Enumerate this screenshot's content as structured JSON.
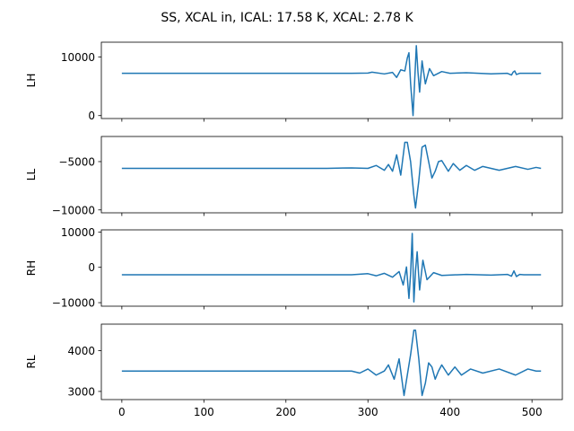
{
  "figure": {
    "suptitle": "SS, XCAL in, ICAL: 17.58 K, XCAL: 2.78 K",
    "line_color": "#1f77b4"
  },
  "chart_data": [
    {
      "type": "line",
      "ylabel": "LH",
      "xlim": [
        -25,
        537
      ],
      "ylim": [
        -500,
        12500
      ],
      "yticks": [
        0,
        10000
      ],
      "ytick_labels": [
        "0",
        "10000"
      ],
      "xticks": [
        0,
        100,
        200,
        300,
        400,
        500
      ],
      "xtick_labels": [
        "",
        "",
        "",
        "",
        "",
        ""
      ],
      "series": [
        {
          "x": [
            0,
            100,
            200,
            280,
            300,
            305,
            320,
            330,
            335,
            340,
            345,
            348,
            350,
            352,
            355,
            357,
            359,
            361,
            363,
            366,
            370,
            375,
            380,
            390,
            400,
            420,
            450,
            470,
            475,
            477,
            479,
            481,
            485,
            490,
            511
          ],
          "values": [
            7200,
            7200,
            7200,
            7200,
            7250,
            7400,
            7100,
            7350,
            6500,
            7800,
            7600,
            9800,
            10700,
            5500,
            0,
            6000,
            11900,
            7400,
            4000,
            9300,
            5400,
            8000,
            6800,
            7500,
            7200,
            7300,
            7100,
            7200,
            6900,
            7400,
            7600,
            7000,
            7200,
            7200,
            7200
          ]
        }
      ]
    },
    {
      "type": "line",
      "ylabel": "LL",
      "xlim": [
        -25,
        537
      ],
      "ylim": [
        -10300,
        -2400
      ],
      "yticks": [
        -10000,
        -5000
      ],
      "ytick_labels": [
        "−10000",
        "−5000"
      ],
      "xticks": [
        0,
        100,
        200,
        300,
        400,
        500
      ],
      "xtick_labels": [
        "",
        "",
        "",
        "",
        "",
        ""
      ],
      "series": [
        {
          "x": [
            0,
            50,
            100,
            150,
            200,
            250,
            280,
            300,
            310,
            320,
            325,
            330,
            335,
            340,
            345,
            348,
            352,
            356,
            358,
            362,
            366,
            370,
            374,
            378,
            382,
            386,
            390,
            398,
            404,
            412,
            420,
            430,
            440,
            460,
            480,
            495,
            505,
            511
          ],
          "values": [
            -5700,
            -5700,
            -5700,
            -5700,
            -5700,
            -5700,
            -5650,
            -5700,
            -5400,
            -5900,
            -5300,
            -6000,
            -4300,
            -6400,
            -3000,
            -3000,
            -5000,
            -8500,
            -9800,
            -7000,
            -3500,
            -3300,
            -5000,
            -6700,
            -6000,
            -5000,
            -4900,
            -6000,
            -5200,
            -5900,
            -5400,
            -5900,
            -5500,
            -5900,
            -5500,
            -5800,
            -5600,
            -5700
          ]
        }
      ]
    },
    {
      "type": "line",
      "ylabel": "RH",
      "xlim": [
        -25,
        537
      ],
      "ylim": [
        -11000,
        10600
      ],
      "yticks": [
        -10000,
        0,
        10000
      ],
      "ytick_labels": [
        "−10000",
        "0",
        "10000"
      ],
      "xticks": [
        0,
        100,
        200,
        300,
        400,
        500
      ],
      "xtick_labels": [
        "",
        "",
        "",
        "",
        "",
        ""
      ],
      "series": [
        {
          "x": [
            0,
            100,
            200,
            280,
            300,
            310,
            320,
            330,
            338,
            343,
            347,
            350,
            352,
            354,
            356,
            358,
            360,
            363,
            367,
            372,
            380,
            390,
            420,
            450,
            470,
            475,
            478,
            481,
            485,
            490,
            511
          ],
          "values": [
            -2100,
            -2100,
            -2100,
            -2100,
            -1800,
            -2400,
            -1700,
            -2800,
            -1200,
            -5000,
            100,
            -8800,
            -2000,
            9600,
            -9800,
            -1000,
            4400,
            -6400,
            2000,
            -3500,
            -1500,
            -2300,
            -2000,
            -2200,
            -2000,
            -2500,
            -1000,
            -2600,
            -2000,
            -2100,
            -2100
          ]
        }
      ]
    },
    {
      "type": "line",
      "ylabel": "RL",
      "xlim": [
        -25,
        537
      ],
      "ylim": [
        2800,
        4650
      ],
      "yticks": [
        3000,
        4000
      ],
      "ytick_labels": [
        "3000",
        "4000"
      ],
      "xticks": [
        0,
        100,
        200,
        300,
        400,
        500
      ],
      "xtick_labels": [
        "0",
        "100",
        "200",
        "300",
        "400",
        "500"
      ],
      "series": [
        {
          "x": [
            0,
            50,
            100,
            150,
            200,
            250,
            280,
            290,
            300,
            310,
            320,
            325,
            332,
            338,
            344,
            348,
            352,
            356,
            358,
            362,
            366,
            370,
            374,
            378,
            382,
            386,
            390,
            398,
            406,
            414,
            425,
            440,
            460,
            480,
            495,
            505,
            511
          ],
          "values": [
            3500,
            3500,
            3500,
            3500,
            3500,
            3500,
            3500,
            3450,
            3550,
            3400,
            3500,
            3650,
            3300,
            3800,
            2900,
            3400,
            3900,
            4500,
            4500,
            3800,
            2900,
            3200,
            3700,
            3600,
            3300,
            3500,
            3650,
            3400,
            3600,
            3400,
            3550,
            3450,
            3550,
            3400,
            3550,
            3500,
            3500
          ]
        }
      ]
    }
  ]
}
